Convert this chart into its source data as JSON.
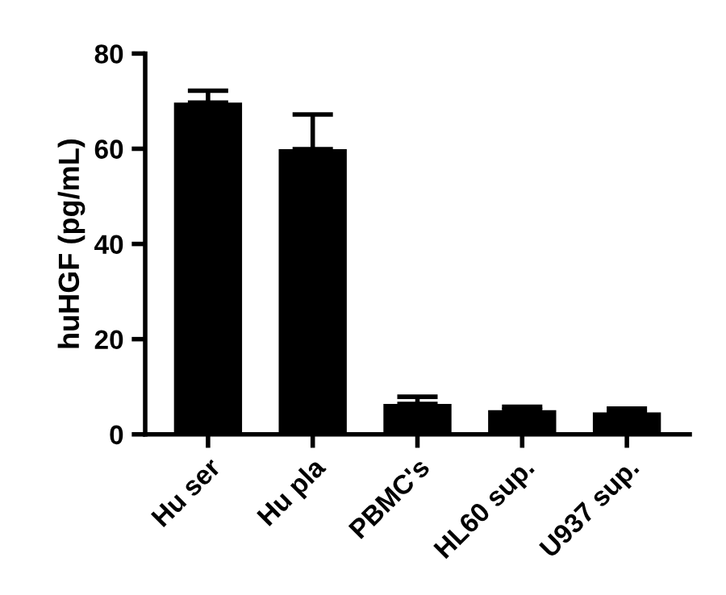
{
  "chart_data": {
    "type": "bar",
    "ylabel": "huHGF (pg/mL)",
    "categories": [
      "Hu ser",
      "Hu pla",
      "PBMC's",
      "HL60 sup.",
      "U937 sup."
    ],
    "values": [
      69.7,
      59.9,
      6.4,
      5.1,
      4.6
    ],
    "errors": [
      [
        69.7,
        72.2
      ],
      [
        59.9,
        67.2
      ],
      [
        6.4,
        7.9
      ],
      [
        5.1,
        5.8
      ],
      [
        4.6,
        5.4
      ]
    ],
    "color": "#000000",
    "ylim": [
      0,
      80
    ],
    "yticks": [
      0,
      20,
      40,
      60,
      80
    ],
    "grid": false
  }
}
